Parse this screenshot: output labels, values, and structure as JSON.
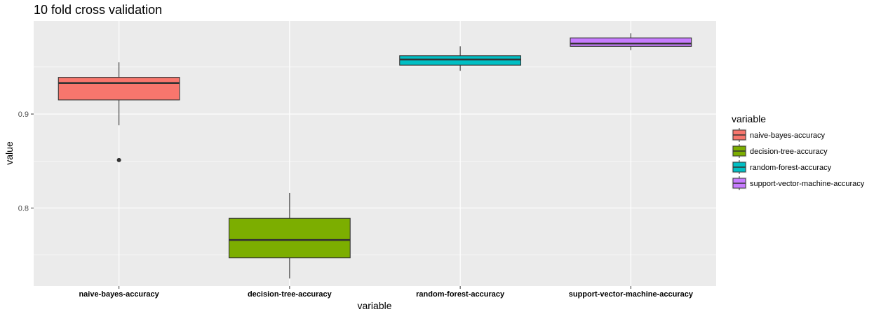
{
  "chart_data": {
    "type": "box",
    "title": "10 fold cross validation",
    "xlabel": "variable",
    "ylabel": "value",
    "ylim": [
      0.717,
      0.999
    ],
    "yticks": [
      0.8,
      0.9
    ],
    "ytick_labels": [
      "0.8",
      "0.9"
    ],
    "grid": true,
    "legend": {
      "title": "variable",
      "placement": "right"
    },
    "categories": [
      "naive-bayes-accuracy",
      "decision-tree-accuracy",
      "random-forest-accuracy",
      "support-vector-machine-accuracy"
    ],
    "series": [
      {
        "name": "naive-bayes-accuracy",
        "color": "#F8766D",
        "whisker_low": 0.888,
        "q1": 0.915,
        "median": 0.933,
        "q3": 0.939,
        "whisker_high": 0.955,
        "outliers": [
          0.851
        ]
      },
      {
        "name": "decision-tree-accuracy",
        "color": "#7CAE00",
        "whisker_low": 0.725,
        "q1": 0.747,
        "median": 0.766,
        "q3": 0.789,
        "whisker_high": 0.816,
        "outliers": []
      },
      {
        "name": "random-forest-accuracy",
        "color": "#00BFC4",
        "whisker_low": 0.946,
        "q1": 0.952,
        "median": 0.958,
        "q3": 0.962,
        "whisker_high": 0.972,
        "outliers": []
      },
      {
        "name": "support-vector-machine-accuracy",
        "color": "#C77CFF",
        "whisker_low": 0.968,
        "q1": 0.972,
        "median": 0.975,
        "q3": 0.981,
        "whisker_high": 0.986,
        "outliers": []
      }
    ]
  }
}
